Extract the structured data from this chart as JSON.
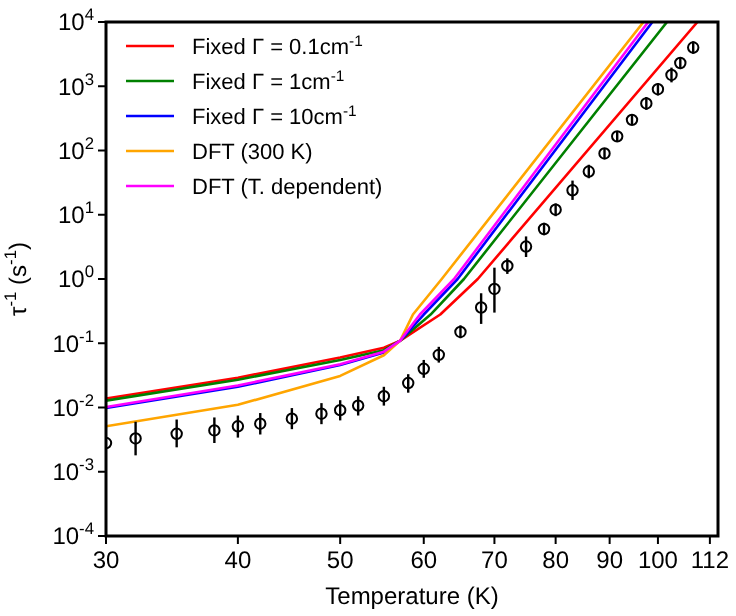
{
  "chart_data": {
    "type": "line",
    "xlabel": "Temperature (K)",
    "ylabel": "τ$^{-1}$ (s$^{-1}$)",
    "log": "xy",
    "xlim": [
      30,
      114
    ],
    "ylim": [
      0.0001,
      10000
    ],
    "xticks": [
      30,
      40,
      50,
      60,
      70,
      80,
      90,
      100,
      112
    ],
    "yticks": [
      {
        "value": 0.0001,
        "label": "10$^{-4}$"
      },
      {
        "value": 0.001,
        "label": "10$^{-3}$"
      },
      {
        "value": 0.01,
        "label": "10$^{-2}$"
      },
      {
        "value": 0.1,
        "label": "10$^{-1}$"
      },
      {
        "value": 1,
        "label": "10$^{0}$"
      },
      {
        "value": 10,
        "label": "10$^{1}$"
      },
      {
        "value": 100,
        "label": "10$^{2}$"
      },
      {
        "value": 1000,
        "label": "10$^{3}$"
      },
      {
        "value": 10000,
        "label": "10$^{4}$"
      }
    ],
    "legend": "top left",
    "grid": false,
    "line_style": "solid",
    "series": [
      {
        "name": "Fixed Γ = 0.1cm$^{-1}$",
        "color": "#ff0000",
        "x": [
          30,
          40,
          50,
          55,
          57,
          62.2,
          67.5,
          109
        ],
        "values": [
          0.0138,
          0.029,
          0.06,
          0.085,
          0.11,
          0.28,
          1,
          10000
        ]
      },
      {
        "name": "Fixed Γ = 1cm$^{-1}$",
        "color": "#008000",
        "x": [
          30,
          40,
          50,
          55,
          57,
          60.9,
          65.5,
          102
        ],
        "values": [
          0.0128,
          0.027,
          0.055,
          0.078,
          0.11,
          0.28,
          1,
          10000
        ]
      },
      {
        "name": "Fixed Γ = 10cm$^{-1}$",
        "color": "#0000ff",
        "x": [
          30,
          40,
          50,
          55,
          57,
          60,
          64.6,
          98.8
        ],
        "values": [
          0.0098,
          0.021,
          0.046,
          0.072,
          0.11,
          0.28,
          1,
          10000
        ]
      },
      {
        "name": "DFT (300 K)",
        "color": "#ffa500",
        "x": [
          30,
          40,
          50,
          55,
          57,
          58.6,
          62.4,
          96.9
        ],
        "values": [
          0.0051,
          0.011,
          0.031,
          0.065,
          0.11,
          0.28,
          1,
          10000
        ]
      },
      {
        "name": "DFT (T. dependent)",
        "color": "#ff00ff",
        "x": [
          30,
          40,
          50,
          55,
          57,
          59.5,
          64.1,
          97.9
        ],
        "values": [
          0.0102,
          0.022,
          0.047,
          0.074,
          0.11,
          0.28,
          1,
          10000
        ]
      },
      {
        "type": "scatter",
        "marker": "circle",
        "color": "#000000",
        "x": [
          30,
          32,
          35,
          38,
          40,
          42,
          45,
          48,
          50,
          52,
          55,
          58,
          60,
          62,
          65,
          68,
          70,
          72,
          75,
          78,
          80,
          83,
          86,
          89,
          91.5,
          94.5,
          97.5,
          100,
          103,
          105,
          108
        ],
        "values": [
          0.0028,
          0.0033,
          0.0039,
          0.0044,
          0.0051,
          0.0056,
          0.0067,
          0.008,
          0.0091,
          0.0107,
          0.015,
          0.024,
          0.04,
          0.066,
          0.15,
          0.36,
          0.7,
          1.6,
          3.2,
          6,
          12,
          24,
          47,
          90,
          166,
          300,
          540,
          900,
          1500,
          2300,
          4000
        ],
        "errors": [
          null,
          [
            0.0018,
            0.006
          ],
          [
            0.0024,
            0.0065
          ],
          [
            0.0028,
            0.007
          ],
          [
            0.0034,
            0.0075
          ],
          [
            0.0038,
            0.0082
          ],
          [
            0.0046,
            0.0098
          ],
          [
            0.0055,
            0.0117
          ],
          [
            0.0063,
            0.013
          ],
          [
            0.0075,
            0.015
          ],
          [
            0.0107,
            0.021
          ],
          [
            0.017,
            0.033
          ],
          [
            0.029,
            0.055
          ],
          [
            0.05,
            0.088
          ],
          [
            0.12,
            0.19
          ],
          [
            0.2,
            0.6
          ],
          [
            0.3,
            1.5
          ],
          [
            1.2,
            2.1
          ],
          [
            2.2,
            4.6
          ],
          [
            4.8,
            7.5
          ],
          [
            9.5,
            15
          ],
          [
            17,
            34
          ],
          [
            37,
            60
          ],
          [
            75,
            108
          ],
          [
            140,
            200
          ],
          [
            250,
            360
          ],
          [
            430,
            680
          ],
          [
            720,
            1120
          ],
          [
            1150,
            1950
          ],
          [
            1850,
            2850
          ],
          [
            3200,
            5000
          ]
        ]
      }
    ]
  }
}
